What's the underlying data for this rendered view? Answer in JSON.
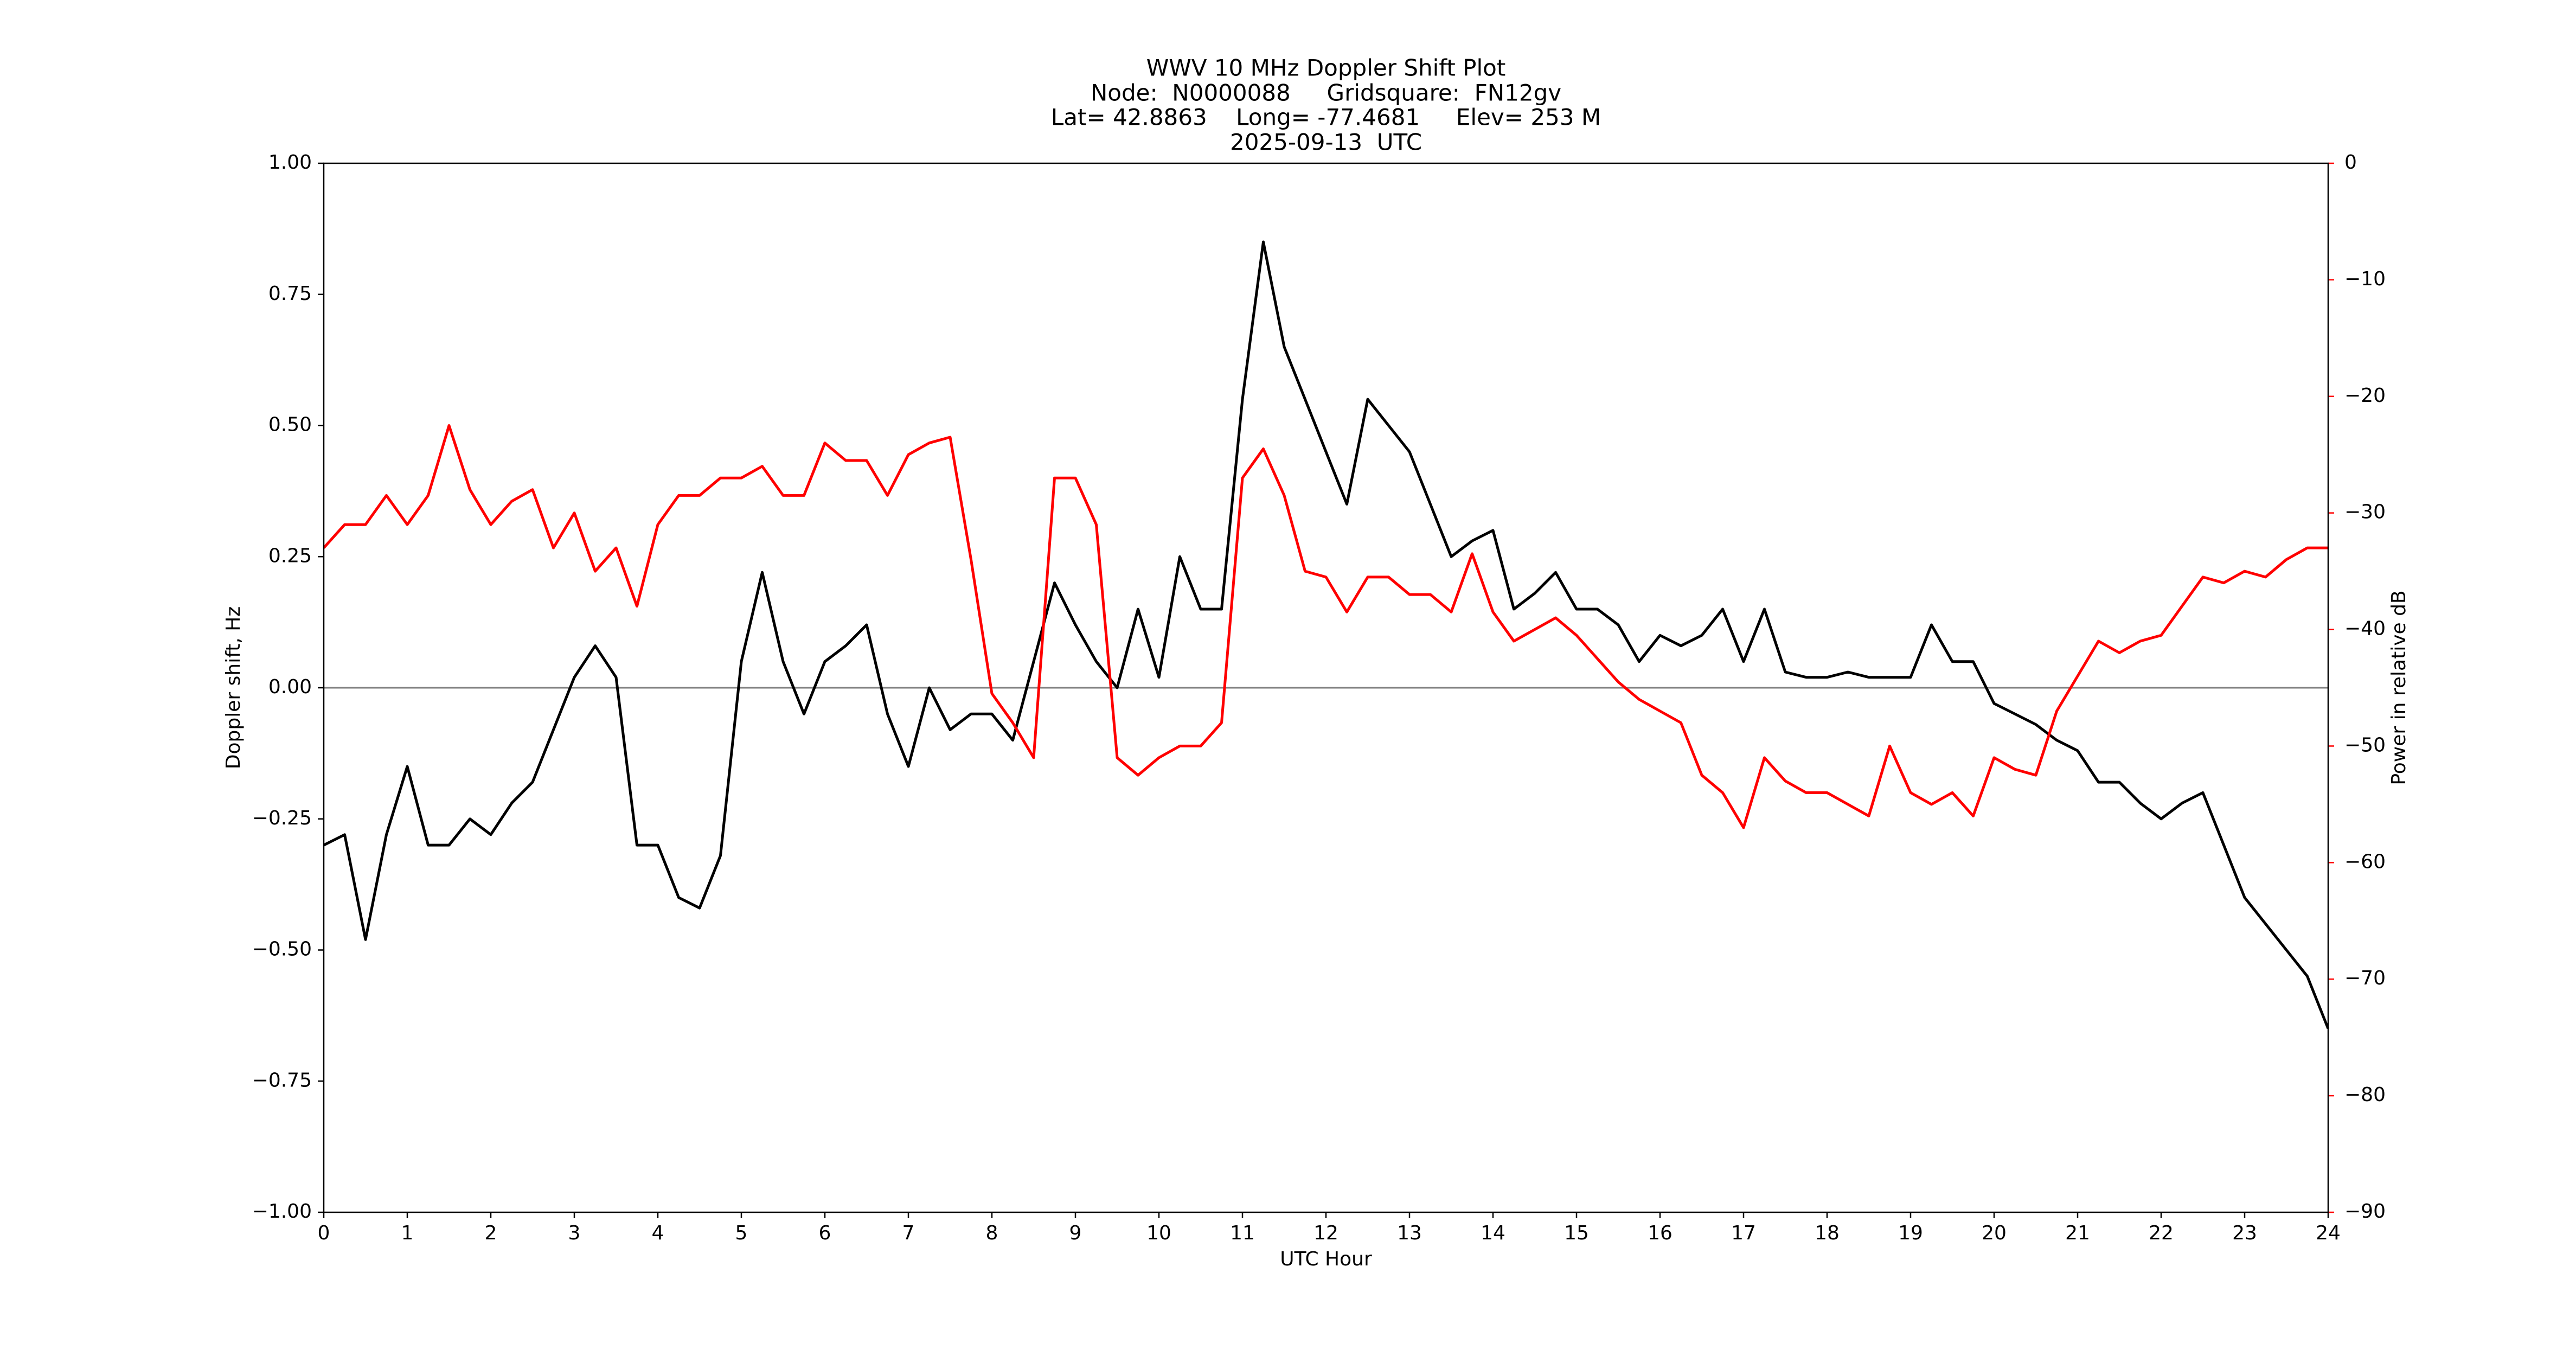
{
  "chart_data": {
    "type": "line",
    "title": "WWV 10 MHz Doppler Shift Plot",
    "subtitle": [
      "Node:  N0000088     Gridsquare:  FN12gv",
      "Lat= 42.8863    Long= -77.4681     Elev= 253 M",
      "2025-09-13  UTC"
    ],
    "x_label": "UTC Hour",
    "y_label": "Doppler shift, Hz",
    "y2_label": "Power in relative dB",
    "x": [
      0,
      0.25,
      0.5,
      0.75,
      1,
      1.25,
      1.5,
      1.75,
      2,
      2.25,
      2.5,
      2.75,
      3,
      3.25,
      3.5,
      3.75,
      4,
      4.25,
      4.5,
      4.75,
      5,
      5.25,
      5.5,
      5.75,
      6,
      6.25,
      6.5,
      6.75,
      7,
      7.25,
      7.5,
      7.75,
      8,
      8.25,
      8.5,
      8.75,
      9,
      9.25,
      9.5,
      9.75,
      10,
      10.25,
      10.5,
      10.75,
      11,
      11.25,
      11.5,
      11.75,
      12,
      12.25,
      12.5,
      12.75,
      13,
      13.25,
      13.5,
      13.75,
      14,
      14.25,
      14.5,
      14.75,
      15,
      15.25,
      15.5,
      15.75,
      16,
      16.25,
      16.5,
      16.75,
      17,
      17.25,
      17.5,
      17.75,
      18,
      18.25,
      18.5,
      18.75,
      19,
      19.25,
      19.5,
      19.75,
      20,
      20.25,
      20.5,
      20.75,
      21,
      21.25,
      21.5,
      21.75,
      22,
      22.25,
      22.5,
      22.75,
      23,
      23.25,
      23.5,
      23.75,
      24
    ],
    "series": [
      {
        "name": "Doppler shift",
        "color": "#000000",
        "axis": "y",
        "values": [
          -0.3,
          -0.28,
          -0.48,
          -0.28,
          -0.15,
          -0.3,
          -0.3,
          -0.25,
          -0.28,
          -0.22,
          -0.18,
          -0.08,
          0.02,
          0.08,
          0.02,
          -0.3,
          -0.3,
          -0.4,
          -0.42,
          -0.32,
          0.05,
          0.22,
          0.05,
          -0.05,
          0.05,
          0.08,
          0.12,
          -0.05,
          -0.15,
          0.0,
          -0.08,
          -0.05,
          -0.05,
          -0.1,
          0.05,
          0.2,
          0.12,
          0.05,
          0.0,
          0.15,
          0.02,
          0.25,
          0.15,
          0.15,
          0.55,
          0.85,
          0.65,
          0.55,
          0.45,
          0.35,
          0.55,
          0.5,
          0.45,
          0.35,
          0.25,
          0.28,
          0.3,
          0.15,
          0.18,
          0.22,
          0.15,
          0.15,
          0.12,
          0.05,
          0.1,
          0.08,
          0.1,
          0.15,
          0.05,
          0.15,
          0.03,
          0.02,
          0.02,
          0.03,
          0.02,
          0.02,
          0.02,
          0.12,
          0.05,
          0.05,
          -0.03,
          -0.05,
          -0.07,
          -0.1,
          -0.12,
          -0.18,
          -0.18,
          -0.22,
          -0.25,
          -0.22,
          -0.2,
          -0.3,
          -0.4,
          -0.45,
          -0.5,
          -0.55,
          -0.65
        ]
      },
      {
        "name": "Power",
        "color": "#ff0000",
        "axis": "y2",
        "values": [
          -33,
          -31,
          -31,
          -28.5,
          -31,
          -28.5,
          -22.5,
          -28,
          -31,
          -29,
          -28,
          -33,
          -30,
          -35,
          -33,
          -38,
          -31,
          -28.5,
          -28.5,
          -27,
          -27,
          -26,
          -28.5,
          -28.5,
          -24,
          -25.5,
          -25.5,
          -28.5,
          -25,
          -24,
          -23.5,
          -34,
          -45.5,
          -48,
          -51,
          -27,
          -27,
          -31,
          -51,
          -52.5,
          -51,
          -50,
          -50,
          -48,
          -27,
          -24.5,
          -28.5,
          -35,
          -35.5,
          -38.5,
          -35.5,
          -35.5,
          -37,
          -37,
          -38.5,
          -33.5,
          -38.5,
          -41,
          -40,
          -39,
          -40.5,
          -42.5,
          -44.5,
          -46,
          -47,
          -48,
          -52.5,
          -54,
          -57,
          -51,
          -53,
          -54,
          -54,
          -55,
          -56,
          -50,
          -54,
          -55,
          -54,
          -56,
          -51,
          -52,
          -52.5,
          -47,
          -44,
          -41,
          -42,
          -41,
          -40.5,
          -38,
          -35.5,
          -36,
          -35,
          -35.5,
          -34,
          -33,
          -33
        ]
      }
    ],
    "xlim": [
      0,
      24
    ],
    "xticks": [
      0,
      1,
      2,
      3,
      4,
      5,
      6,
      7,
      8,
      9,
      10,
      11,
      12,
      13,
      14,
      15,
      16,
      17,
      18,
      19,
      20,
      21,
      22,
      23,
      24
    ],
    "ylim": [
      -1,
      1
    ],
    "yticks": [
      {
        "value": -1,
        "label": "−1.00"
      },
      {
        "value": -0.75,
        "label": "−0.75"
      },
      {
        "value": -0.5,
        "label": "−0.50"
      },
      {
        "value": -0.25,
        "label": "−0.25"
      },
      {
        "value": 0,
        "label": "0.00"
      },
      {
        "value": 0.25,
        "label": "0.25"
      },
      {
        "value": 0.5,
        "label": "0.50"
      },
      {
        "value": 0.75,
        "label": "0.75"
      },
      {
        "value": 1,
        "label": "1.00"
      }
    ],
    "y2lim": [
      -90,
      0
    ],
    "y2ticks": [
      {
        "value": -90,
        "label": "−90"
      },
      {
        "value": -80,
        "label": "−80"
      },
      {
        "value": -70,
        "label": "−70"
      },
      {
        "value": -60,
        "label": "−60"
      },
      {
        "value": -50,
        "label": "−50"
      },
      {
        "value": -40,
        "label": "−40"
      },
      {
        "value": -30,
        "label": "−30"
      },
      {
        "value": -20,
        "label": "−20"
      },
      {
        "value": -10,
        "label": "−10"
      },
      0
    ],
    "y2_color": "#ff0000",
    "reference_line": 0,
    "reference_color": "#808080"
  }
}
